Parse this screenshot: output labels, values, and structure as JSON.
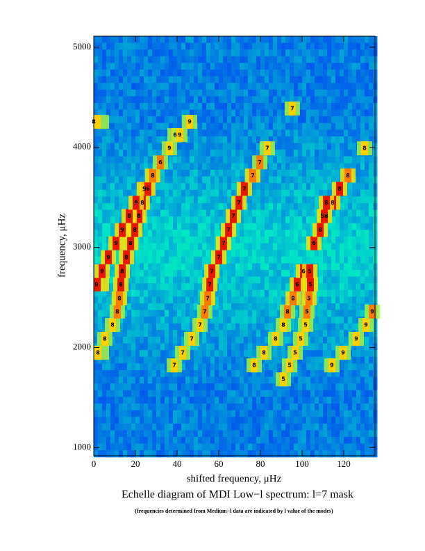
{
  "chart_data": {
    "type": "echelle",
    "title": "Echelle diagram of MDI Low−l spectrum: l=7 mask",
    "caption": "(frequencies determined from Medium−l data are indicated by  l value of the modes)",
    "x_label": "shifted frequency, μHz",
    "y_label": "frequency, μHz",
    "xlim": [
      0,
      135
    ],
    "ylim": [
      920,
      5110
    ],
    "xticks": [
      0,
      20,
      40,
      60,
      80,
      100,
      120
    ],
    "yticks": [
      1000,
      2000,
      3000,
      4000,
      5000
    ],
    "annotations": [
      {
        "x": 2,
        "y": 1948,
        "text": "8"
      },
      {
        "x": 5.3,
        "y": 2087,
        "text": "8"
      },
      {
        "x": 9,
        "y": 2226,
        "text": "8"
      },
      {
        "x": 11.3,
        "y": 2359,
        "text": "8"
      },
      {
        "x": 12.3,
        "y": 2491,
        "text": "8"
      },
      {
        "x": 13,
        "y": 2631,
        "text": "8"
      },
      {
        "x": 13.7,
        "y": 2763,
        "text": "8"
      },
      {
        "x": 15.7,
        "y": 2902,
        "text": "8"
      },
      {
        "x": 17.7,
        "y": 3042,
        "text": "8"
      },
      {
        "x": 19.7,
        "y": 3174,
        "text": "8"
      },
      {
        "x": 21.7,
        "y": 3314,
        "text": "8"
      },
      {
        "x": 17,
        "y": 3314,
        "text": "8"
      },
      {
        "x": 23.3,
        "y": 3446,
        "text": "8"
      },
      {
        "x": 20.3,
        "y": 3446,
        "text": "9"
      },
      {
        "x": 24.3,
        "y": 3585,
        "text": "9"
      },
      {
        "x": 26,
        "y": 3585,
        "text": "6"
      },
      {
        "x": 28.3,
        "y": 3718,
        "text": "8"
      },
      {
        "x": 32,
        "y": 3850,
        "text": "6"
      },
      {
        "x": 36.3,
        "y": 3990,
        "text": "9"
      },
      {
        "x": 39,
        "y": 4122,
        "text": "6"
      },
      {
        "x": 41.3,
        "y": 4122,
        "text": "9"
      },
      {
        "x": 46,
        "y": 4254,
        "text": "9"
      },
      {
        "x": 0,
        "y": 4254,
        "text": "8"
      },
      {
        "x": 1.3,
        "y": 2631,
        "text": "9"
      },
      {
        "x": 4,
        "y": 2763,
        "text": "9"
      },
      {
        "x": 7,
        "y": 2902,
        "text": "9"
      },
      {
        "x": 10.7,
        "y": 3042,
        "text": "9"
      },
      {
        "x": 13.7,
        "y": 3174,
        "text": "9"
      },
      {
        "x": 38.7,
        "y": 1822,
        "text": "7"
      },
      {
        "x": 42.7,
        "y": 1948,
        "text": "7"
      },
      {
        "x": 47,
        "y": 2087,
        "text": "7"
      },
      {
        "x": 51,
        "y": 2226,
        "text": "7"
      },
      {
        "x": 53.3,
        "y": 2359,
        "text": "7"
      },
      {
        "x": 54.7,
        "y": 2491,
        "text": "7"
      },
      {
        "x": 55.7,
        "y": 2631,
        "text": "7"
      },
      {
        "x": 56.7,
        "y": 2763,
        "text": "7"
      },
      {
        "x": 60,
        "y": 2902,
        "text": "7"
      },
      {
        "x": 62.3,
        "y": 3042,
        "text": "7"
      },
      {
        "x": 64.7,
        "y": 3174,
        "text": "7"
      },
      {
        "x": 67,
        "y": 3314,
        "text": "7"
      },
      {
        "x": 69.7,
        "y": 3446,
        "text": "7"
      },
      {
        "x": 72.3,
        "y": 3585,
        "text": "7"
      },
      {
        "x": 76.3,
        "y": 3718,
        "text": "7"
      },
      {
        "x": 79.7,
        "y": 3850,
        "text": "7"
      },
      {
        "x": 83.3,
        "y": 3990,
        "text": "7"
      },
      {
        "x": 95.3,
        "y": 4387,
        "text": "7"
      },
      {
        "x": 77,
        "y": 1822,
        "text": "8"
      },
      {
        "x": 81.7,
        "y": 1948,
        "text": "8"
      },
      {
        "x": 87.3,
        "y": 2087,
        "text": "8"
      },
      {
        "x": 91,
        "y": 2226,
        "text": "8"
      },
      {
        "x": 93,
        "y": 2359,
        "text": "8"
      },
      {
        "x": 95.7,
        "y": 2491,
        "text": "8"
      },
      {
        "x": 97.7,
        "y": 2631,
        "text": "6"
      },
      {
        "x": 100.7,
        "y": 2763,
        "text": "6"
      },
      {
        "x": 105.7,
        "y": 3042,
        "text": "6"
      },
      {
        "x": 108.7,
        "y": 3174,
        "text": "8"
      },
      {
        "x": 110.7,
        "y": 3314,
        "text": "58"
      },
      {
        "x": 91,
        "y": 1683,
        "text": "5"
      },
      {
        "x": 94,
        "y": 1822,
        "text": "5"
      },
      {
        "x": 96.7,
        "y": 1948,
        "text": "5"
      },
      {
        "x": 99.3,
        "y": 2087,
        "text": "5"
      },
      {
        "x": 101.7,
        "y": 2226,
        "text": "5"
      },
      {
        "x": 102.3,
        "y": 2359,
        "text": "5"
      },
      {
        "x": 103.3,
        "y": 2491,
        "text": "5"
      },
      {
        "x": 104,
        "y": 2631,
        "text": "5"
      },
      {
        "x": 103.7,
        "y": 2763,
        "text": "5"
      },
      {
        "x": 114.3,
        "y": 1822,
        "text": "9"
      },
      {
        "x": 119.7,
        "y": 1948,
        "text": "9"
      },
      {
        "x": 126,
        "y": 2087,
        "text": "9"
      },
      {
        "x": 130.7,
        "y": 2226,
        "text": "9"
      },
      {
        "x": 133.7,
        "y": 2359,
        "text": "9"
      },
      {
        "x": 130,
        "y": 3990,
        "text": "8"
      },
      {
        "x": 122,
        "y": 3718,
        "text": "8"
      },
      {
        "x": 118,
        "y": 3585,
        "text": "8"
      },
      {
        "x": 114.7,
        "y": 3446,
        "text": "8"
      },
      {
        "x": 111.7,
        "y": 3446,
        "text": "8"
      }
    ]
  }
}
